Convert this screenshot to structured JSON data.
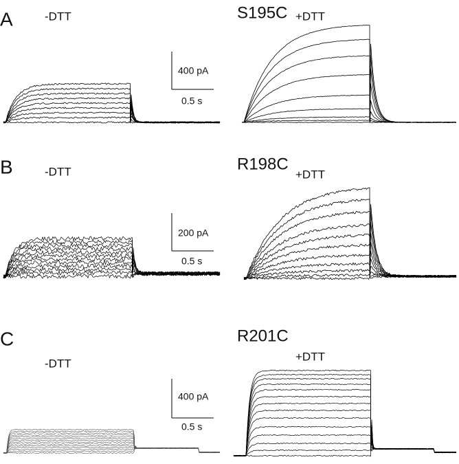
{
  "panels": [
    {
      "label": "A",
      "mutant": "S195C",
      "conditions": [
        "-DTT",
        "+DTT"
      ],
      "scale": {
        "current": "400 pA",
        "time": "0.5 s"
      }
    },
    {
      "label": "B",
      "mutant": "R198C",
      "conditions": [
        "-DTT",
        "+DTT"
      ],
      "scale": {
        "current": "200 pA",
        "time": "0.5 s"
      }
    },
    {
      "label": "C",
      "mutant": "R201C",
      "conditions": [
        "-DTT",
        "+DTT"
      ],
      "scale": {
        "current": "400 pA",
        "time": "0.5 s"
      }
    }
  ]
}
